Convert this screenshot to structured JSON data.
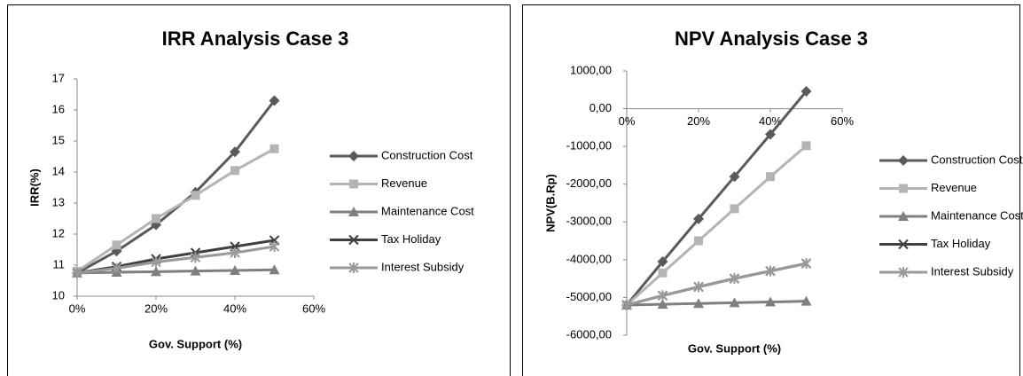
{
  "chart_data": [
    {
      "type": "line",
      "title": "IRR Analysis Case 3",
      "x_label": "Gov. Support (%)",
      "y_label": "IRR(%)",
      "x": [
        0,
        10,
        20,
        30,
        40,
        50
      ],
      "xlim": [
        0,
        60
      ],
      "xticks": [
        {
          "value": 0,
          "label": "0%"
        },
        {
          "value": 20,
          "label": "20%"
        },
        {
          "value": 40,
          "label": "40%"
        },
        {
          "value": 60,
          "label": "60%"
        }
      ],
      "ylim": [
        10,
        17
      ],
      "yticks": [
        10,
        11,
        12,
        13,
        14,
        15,
        16,
        17
      ],
      "legend": "right",
      "grid": false,
      "series": [
        {
          "name": "Construction Cost",
          "color": "#5a5a5a",
          "marker": "diamond",
          "values": [
            10.75,
            11.45,
            12.3,
            13.35,
            14.65,
            16.3
          ]
        },
        {
          "name": "Revenue",
          "color": "#b4b4b4",
          "marker": "square",
          "values": [
            10.8,
            11.65,
            12.5,
            13.25,
            14.05,
            14.75
          ]
        },
        {
          "name": "Maintenance Cost",
          "color": "#7f7f7f",
          "marker": "triangle",
          "values": [
            10.75,
            10.77,
            10.79,
            10.81,
            10.83,
            10.85
          ]
        },
        {
          "name": "Tax Holiday",
          "color": "#404040",
          "marker": "x",
          "values": [
            10.75,
            10.95,
            11.2,
            11.4,
            11.6,
            11.8
          ]
        },
        {
          "name": "Interest Subsidy",
          "color": "#999999",
          "marker": "star",
          "values": [
            10.75,
            10.9,
            11.1,
            11.25,
            11.4,
            11.6
          ]
        }
      ]
    },
    {
      "type": "line",
      "title": "NPV Analysis Case 3",
      "x_label": "Gov. Support (%)",
      "y_label": "NPV(B.Rp)",
      "x": [
        0,
        10,
        20,
        30,
        40,
        50
      ],
      "xlim": [
        0,
        60
      ],
      "xticks": [
        {
          "value": 0,
          "label": "0%"
        },
        {
          "value": 20,
          "label": "20%"
        },
        {
          "value": 40,
          "label": "40%"
        },
        {
          "value": 60,
          "label": "60%"
        }
      ],
      "ylim": [
        -6000,
        1000
      ],
      "yticks": [
        {
          "value": -6000,
          "label": "-6000,00"
        },
        {
          "value": -5000,
          "label": "-5000,00"
        },
        {
          "value": -4000,
          "label": "-4000,00"
        },
        {
          "value": -3000,
          "label": "-3000,00"
        },
        {
          "value": -2000,
          "label": "-2000,00"
        },
        {
          "value": -1000,
          "label": "-1000,00"
        },
        {
          "value": 0,
          "label": "0,00"
        },
        {
          "value": 1000,
          "label": "1000,00"
        }
      ],
      "legend": "right",
      "grid": false,
      "series": [
        {
          "name": "Construction Cost",
          "color": "#5a5a5a",
          "marker": "diamond",
          "values": [
            -5200,
            -4050,
            -2920,
            -1800,
            -680,
            460
          ]
        },
        {
          "name": "Revenue",
          "color": "#b4b4b4",
          "marker": "square",
          "values": [
            -5200,
            -4350,
            -3500,
            -2650,
            -1800,
            -980
          ]
        },
        {
          "name": "Maintenance Cost",
          "color": "#7f7f7f",
          "marker": "triangle",
          "values": [
            -5200,
            -5180,
            -5160,
            -5140,
            -5120,
            -5100
          ]
        },
        {
          "name": "Tax Holiday",
          "color": "#404040",
          "marker": "x",
          "values": [
            -5200,
            -4950,
            -4720,
            -4500,
            -4300,
            -4100
          ]
        },
        {
          "name": "Interest Subsidy",
          "color": "#999999",
          "marker": "star",
          "values": [
            -5200,
            -4950,
            -4720,
            -4500,
            -4300,
            -4100
          ]
        }
      ]
    }
  ]
}
